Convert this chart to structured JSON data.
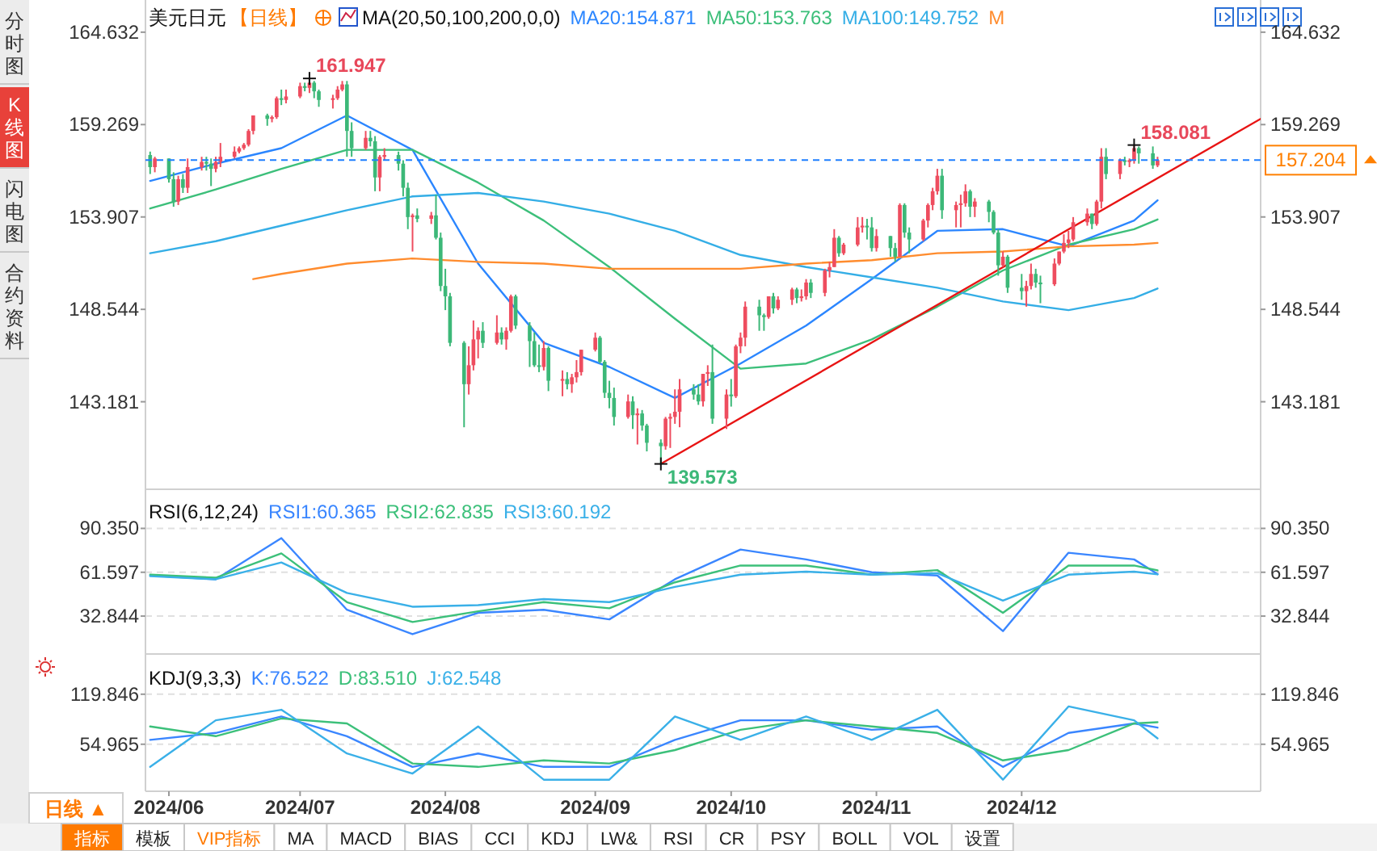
{
  "chart_data": [
    {
      "type": "candlestick",
      "title": "美元日元",
      "subtitle": "【日线】",
      "legend_title": "MA(20,50,100,200,0,0)",
      "legend": "top",
      "tick_labels": "y",
      "xlim": [
        "2024-05-29",
        "2025-01-22"
      ],
      "ylim": [
        138.1,
        166.5
      ],
      "yticks": [
        143.181,
        148.544,
        153.907,
        159.269,
        164.632
      ],
      "y2lim": [
        138.1,
        166.5
      ],
      "y2ticks": [
        143.181,
        148.544,
        153.907,
        159.269,
        164.632
      ],
      "x": [
        "2024-05-30",
        "2024-05-31",
        "2024-06-03",
        "2024-06-04",
        "2024-06-05",
        "2024-06-06",
        "2024-06-07",
        "2024-06-10",
        "2024-06-11",
        "2024-06-12",
        "2024-06-13",
        "2024-06-14",
        "2024-06-17",
        "2024-06-18",
        "2024-06-19",
        "2024-06-20",
        "2024-06-21",
        "2024-06-24",
        "2024-06-25",
        "2024-06-26",
        "2024-06-27",
        "2024-06-28",
        "2024-07-01",
        "2024-07-02",
        "2024-07-03",
        "2024-07-04",
        "2024-07-05",
        "2024-07-08",
        "2024-07-09",
        "2024-07-10",
        "2024-07-11",
        "2024-07-12",
        "2024-07-15",
        "2024-07-16",
        "2024-07-17",
        "2024-07-18",
        "2024-07-19",
        "2024-07-22",
        "2024-07-23",
        "2024-07-24",
        "2024-07-25",
        "2024-07-26",
        "2024-07-29",
        "2024-07-30",
        "2024-07-31",
        "2024-08-01",
        "2024-08-02",
        "2024-08-05",
        "2024-08-06",
        "2024-08-07",
        "2024-08-08",
        "2024-08-09",
        "2024-08-12",
        "2024-08-13",
        "2024-08-14",
        "2024-08-15",
        "2024-08-16",
        "2024-08-19",
        "2024-08-20",
        "2024-08-21",
        "2024-08-22",
        "2024-08-23",
        "2024-08-26",
        "2024-08-27",
        "2024-08-28",
        "2024-08-29",
        "2024-08-30",
        "2024-09-02",
        "2024-09-03",
        "2024-09-04",
        "2024-09-05",
        "2024-09-06",
        "2024-09-09",
        "2024-09-10",
        "2024-09-11",
        "2024-09-12",
        "2024-09-13",
        "2024-09-16",
        "2024-09-17",
        "2024-09-18",
        "2024-09-19",
        "2024-09-20",
        "2024-09-23",
        "2024-09-24",
        "2024-09-25",
        "2024-09-26",
        "2024-09-27",
        "2024-09-30",
        "2024-10-01",
        "2024-10-02",
        "2024-10-03",
        "2024-10-04",
        "2024-10-07",
        "2024-10-08",
        "2024-10-09",
        "2024-10-10",
        "2024-10-11",
        "2024-10-14",
        "2024-10-15",
        "2024-10-16",
        "2024-10-17",
        "2024-10-18",
        "2024-10-21",
        "2024-10-22",
        "2024-10-23",
        "2024-10-24",
        "2024-10-25",
        "2024-10-28",
        "2024-10-29",
        "2024-10-30",
        "2024-10-31",
        "2024-11-01",
        "2024-11-04",
        "2024-11-05",
        "2024-11-06",
        "2024-11-07",
        "2024-11-08",
        "2024-11-11",
        "2024-11-12",
        "2024-11-13",
        "2024-11-14",
        "2024-11-15",
        "2024-11-18",
        "2024-11-19",
        "2024-11-20",
        "2024-11-21",
        "2024-11-22",
        "2024-11-25",
        "2024-11-26",
        "2024-11-27",
        "2024-11-28",
        "2024-11-29",
        "2024-12-02",
        "2024-12-03",
        "2024-12-04",
        "2024-12-05",
        "2024-12-06",
        "2024-12-09",
        "2024-12-10",
        "2024-12-11",
        "2024-12-12",
        "2024-12-13",
        "2024-12-16",
        "2024-12-17",
        "2024-12-18",
        "2024-12-19",
        "2024-12-20",
        "2024-12-23",
        "2024-12-24",
        "2024-12-25",
        "2024-12-26",
        "2024-12-27",
        "2024-12-30",
        "2024-12-31"
      ],
      "ohlc": [
        [
          157.5,
          157.7,
          156.4,
          156.8
        ],
        [
          156.8,
          157.4,
          156.5,
          157.3
        ],
        [
          157.3,
          157.3,
          155.9,
          156.1
        ],
        [
          156.1,
          156.5,
          154.5,
          154.8
        ],
        [
          154.8,
          156.3,
          154.6,
          156.1
        ],
        [
          156.1,
          156.4,
          155.3,
          155.6
        ],
        [
          155.6,
          157.3,
          155.3,
          156.8
        ],
        [
          156.8,
          157.4,
          156.6,
          157.1
        ],
        [
          157.1,
          157.4,
          156.6,
          157.0
        ],
        [
          157.0,
          157.3,
          155.7,
          156.7
        ],
        [
          156.7,
          157.4,
          156.5,
          157.1
        ],
        [
          157.1,
          158.2,
          156.8,
          157.4
        ],
        [
          157.4,
          158.0,
          157.3,
          157.7
        ],
        [
          157.7,
          158.0,
          157.6,
          157.9
        ],
        [
          157.9,
          158.2,
          157.8,
          158.1
        ],
        [
          158.1,
          159.0,
          158.0,
          158.9
        ],
        [
          158.9,
          159.8,
          158.7,
          159.8
        ],
        [
          159.8,
          159.9,
          159.2,
          159.6
        ],
        [
          159.6,
          159.8,
          159.4,
          159.7
        ],
        [
          159.7,
          160.9,
          159.6,
          160.8
        ],
        [
          160.8,
          161.3,
          160.4,
          160.7
        ],
        [
          160.7,
          161.3,
          160.5,
          160.9
        ],
        [
          160.9,
          161.7,
          160.8,
          161.5
        ],
        [
          161.5,
          161.7,
          161.2,
          161.4
        ],
        [
          161.4,
          161.947,
          161.1,
          161.7
        ],
        [
          161.7,
          161.8,
          160.8,
          161.2
        ],
        [
          161.2,
          161.3,
          160.3,
          160.7
        ],
        [
          160.7,
          161.0,
          160.2,
          160.8
        ],
        [
          160.8,
          161.5,
          160.7,
          161.3
        ],
        [
          161.3,
          161.8,
          161.2,
          161.6
        ],
        [
          161.6,
          161.8,
          157.4,
          158.9
        ],
        [
          158.9,
          159.4,
          157.4,
          157.9
        ],
        [
          157.9,
          158.9,
          157.8,
          158.5
        ],
        [
          158.5,
          158.9,
          158.0,
          158.3
        ],
        [
          158.3,
          158.6,
          155.4,
          156.2
        ],
        [
          156.2,
          157.5,
          155.4,
          157.4
        ],
        [
          157.4,
          157.9,
          157.2,
          157.5
        ],
        [
          157.5,
          157.7,
          156.6,
          157.0
        ],
        [
          157.0,
          157.2,
          155.1,
          155.6
        ],
        [
          155.6,
          155.9,
          153.2,
          153.9
        ],
        [
          153.9,
          154.1,
          151.9,
          154.0
        ],
        [
          154.0,
          154.4,
          153.6,
          153.8
        ],
        [
          153.8,
          154.2,
          153.5,
          154.0
        ],
        [
          154.0,
          155.2,
          152.6,
          152.7
        ],
        [
          152.7,
          153.0,
          149.6,
          149.9
        ],
        [
          149.9,
          150.9,
          148.5,
          149.3
        ],
        [
          149.3,
          149.5,
          146.4,
          146.6
        ],
        [
          146.6,
          146.7,
          141.7,
          144.2
        ],
        [
          144.2,
          146.4,
          143.6,
          145.3
        ],
        [
          145.3,
          147.9,
          145.0,
          146.8
        ],
        [
          146.8,
          147.5,
          145.7,
          147.3
        ],
        [
          147.3,
          147.8,
          146.3,
          146.6
        ],
        [
          146.6,
          148.2,
          146.5,
          147.2
        ],
        [
          147.2,
          147.5,
          146.5,
          146.8
        ],
        [
          146.8,
          147.5,
          146.2,
          147.3
        ],
        [
          147.3,
          149.4,
          147.2,
          149.3
        ],
        [
          149.3,
          149.4,
          147.4,
          147.6
        ],
        [
          147.6,
          147.8,
          145.2,
          146.7
        ],
        [
          146.7,
          147.2,
          145.2,
          145.3
        ],
        [
          145.3,
          146.5,
          144.9,
          145.2
        ],
        [
          145.2,
          146.7,
          145.0,
          146.3
        ],
        [
          146.3,
          146.4,
          143.8,
          144.4
        ],
        [
          144.4,
          145.0,
          143.5,
          144.5
        ],
        [
          144.5,
          144.9,
          143.9,
          144.2
        ],
        [
          144.2,
          144.8,
          143.7,
          144.6
        ],
        [
          144.6,
          145.6,
          144.3,
          144.9
        ],
        [
          144.9,
          146.2,
          144.7,
          146.2
        ],
        [
          146.2,
          147.2,
          146.1,
          146.9
        ],
        [
          146.9,
          147.0,
          145.4,
          145.5
        ],
        [
          145.5,
          145.6,
          143.4,
          143.7
        ],
        [
          143.7,
          144.4,
          142.8,
          143.4
        ],
        [
          143.4,
          144.0,
          141.8,
          142.3
        ],
        [
          142.3,
          143.6,
          142.2,
          143.2
        ],
        [
          143.2,
          143.5,
          141.6,
          142.4
        ],
        [
          142.4,
          142.8,
          140.7,
          142.5
        ],
        [
          142.5,
          142.7,
          141.5,
          141.8
        ],
        [
          141.8,
          141.9,
          140.3,
          140.8
        ],
        [
          140.8,
          141.0,
          139.573,
          140.6
        ],
        [
          140.6,
          142.3,
          140.4,
          142.2
        ],
        [
          142.2,
          142.5,
          140.5,
          142.3
        ],
        [
          142.3,
          143.9,
          141.9,
          142.6
        ],
        [
          142.6,
          144.5,
          141.7,
          143.9
        ],
        [
          143.9,
          144.2,
          143.3,
          143.6
        ],
        [
          143.6,
          144.2,
          143.0,
          143.2
        ],
        [
          143.2,
          144.8,
          142.9,
          144.8
        ],
        [
          144.8,
          145.3,
          144.1,
          144.9
        ],
        [
          144.9,
          146.5,
          141.9,
          142.2
        ],
        [
          142.2,
          143.9,
          141.6,
          143.6
        ],
        [
          143.6,
          144.5,
          142.9,
          143.5
        ],
        [
          143.5,
          146.5,
          143.4,
          146.4
        ],
        [
          146.4,
          147.2,
          146.0,
          146.9
        ],
        [
          146.9,
          149.0,
          146.4,
          148.7
        ],
        [
          148.7,
          149.1,
          147.3,
          148.2
        ],
        [
          148.2,
          148.3,
          147.3,
          148.1
        ],
        [
          148.1,
          149.3,
          148.0,
          149.3
        ],
        [
          149.3,
          149.5,
          148.3,
          148.6
        ],
        [
          148.6,
          149.3,
          148.5,
          149.1
        ],
        [
          149.1,
          149.8,
          148.8,
          149.7
        ],
        [
          149.7,
          149.8,
          148.9,
          149.2
        ],
        [
          149.2,
          149.7,
          149.0,
          149.3
        ],
        [
          149.3,
          150.3,
          149.1,
          150.1
        ],
        [
          150.1,
          150.3,
          149.2,
          149.5
        ],
        [
          149.5,
          150.9,
          149.3,
          150.8
        ],
        [
          150.8,
          151.3,
          150.4,
          151.0
        ],
        [
          151.0,
          153.2,
          151.0,
          152.7
        ],
        [
          152.7,
          152.8,
          151.6,
          151.8
        ],
        [
          151.8,
          152.4,
          151.7,
          152.3
        ],
        [
          152.3,
          153.9,
          152.2,
          153.3
        ],
        [
          153.3,
          153.9,
          153.0,
          153.4
        ],
        [
          153.4,
          153.8,
          152.6,
          153.3
        ],
        [
          153.3,
          153.9,
          151.9,
          152.1
        ],
        [
          152.1,
          153.2,
          151.9,
          152.8
        ],
        [
          152.8,
          152.8,
          151.6,
          152.1
        ],
        [
          152.1,
          152.4,
          151.3,
          151.6
        ],
        [
          151.6,
          154.7,
          151.6,
          154.6
        ],
        [
          154.6,
          154.7,
          152.7,
          153.0
        ],
        [
          153.0,
          153.3,
          151.8,
          152.6
        ],
        [
          152.6,
          153.8,
          152.5,
          153.7
        ],
        [
          153.7,
          154.7,
          153.3,
          154.6
        ],
        [
          154.6,
          155.6,
          154.3,
          155.4
        ],
        [
          155.4,
          156.7,
          155.2,
          156.3
        ],
        [
          156.3,
          156.7,
          153.8,
          154.3
        ],
        [
          154.3,
          154.8,
          153.3,
          154.6
        ],
        [
          154.6,
          155.2,
          153.3,
          154.7
        ],
        [
          154.7,
          155.8,
          154.5,
          155.4
        ],
        [
          155.4,
          155.5,
          153.9,
          154.5
        ],
        [
          154.5,
          155.0,
          153.9,
          154.8
        ],
        [
          154.8,
          154.9,
          153.6,
          154.2
        ],
        [
          154.2,
          154.3,
          152.9,
          153.0
        ],
        [
          153.0,
          153.2,
          150.5,
          151.1
        ],
        [
          151.1,
          151.9,
          151.0,
          151.6
        ],
        [
          151.6,
          151.7,
          149.5,
          149.8
        ],
        [
          149.8,
          150.6,
          149.1,
          149.6
        ],
        [
          149.6,
          150.2,
          148.7,
          149.9
        ],
        [
          149.9,
          151.2,
          149.7,
          150.6
        ],
        [
          150.6,
          150.9,
          149.8,
          150.1
        ],
        [
          150.1,
          150.5,
          148.9,
          150.0
        ],
        [
          150.0,
          151.5,
          149.9,
          151.2
        ],
        [
          151.2,
          151.9,
          151.1,
          151.9
        ],
        [
          151.9,
          152.9,
          151.8,
          152.4
        ],
        [
          152.4,
          153.1,
          152.1,
          152.6
        ],
        [
          152.6,
          153.9,
          152.5,
          153.6
        ],
        [
          153.6,
          154.4,
          153.4,
          154.1
        ],
        [
          154.1,
          154.1,
          153.2,
          153.5
        ],
        [
          153.5,
          154.9,
          153.4,
          154.8
        ],
        [
          154.8,
          157.9,
          154.4,
          157.4
        ],
        [
          157.4,
          157.9,
          156.1,
          156.4
        ],
        [
          156.4,
          157.3,
          156.1,
          157.2
        ],
        [
          157.2,
          157.4,
          156.9,
          157.1
        ],
        [
          157.1,
          157.3,
          156.8,
          157.2
        ],
        [
          157.2,
          158.081,
          157.0,
          157.9
        ],
        [
          157.9,
          158.0,
          157.0,
          157.6
        ],
        [
          157.6,
          158.0,
          156.7,
          156.9
        ],
        [
          156.9,
          157.4,
          156.8,
          157.204
        ]
      ],
      "colors": [
        "#3cb878",
        "#ee4d5f",
        "#3cb878",
        "#3cb878",
        "#ee4d5f",
        "#3cb878",
        "#ee4d5f",
        "#ee4d5f",
        "#3cb878",
        "#3cb878",
        "#ee4d5f",
        "#ee4d5f",
        "#ee4d5f",
        "#ee4d5f",
        "#ee4d5f",
        "#ee4d5f",
        "#ee4d5f",
        "#3cb878",
        "#ee4d5f",
        "#ee4d5f",
        "#3cb878",
        "#ee4d5f",
        "#ee4d5f",
        "#3cb878",
        "#ee4d5f",
        "#3cb878",
        "#3cb878",
        "#ee4d5f",
        "#ee4d5f",
        "#ee4d5f",
        "#3cb878",
        "#3cb878",
        "#ee4d5f",
        "#3cb878",
        "#3cb878",
        "#ee4d5f",
        "#ee4d5f",
        "#3cb878",
        "#3cb878",
        "#3cb878",
        "#ee4d5f",
        "#3cb878",
        "#ee4d5f",
        "#3cb878",
        "#3cb878",
        "#3cb878",
        "#3cb878",
        "#3cb878",
        "#ee4d5f",
        "#ee4d5f",
        "#ee4d5f",
        "#3cb878",
        "#ee4d5f",
        "#3cb878",
        "#ee4d5f",
        "#ee4d5f",
        "#3cb878",
        "#3cb878",
        "#3cb878",
        "#3cb878",
        "#ee4d5f",
        "#3cb878",
        "#ee4d5f",
        "#3cb878",
        "#ee4d5f",
        "#ee4d5f",
        "#ee4d5f",
        "#ee4d5f",
        "#3cb878",
        "#3cb878",
        "#3cb878",
        "#3cb878",
        "#ee4d5f",
        "#3cb878",
        "#ee4d5f",
        "#3cb878",
        "#3cb878",
        "#3cb878",
        "#ee4d5f",
        "#ee4d5f",
        "#ee4d5f",
        "#ee4d5f",
        "#3cb878",
        "#3cb878",
        "#ee4d5f",
        "#ee4d5f",
        "#3cb878",
        "#ee4d5f",
        "#3cb878",
        "#ee4d5f",
        "#ee4d5f",
        "#ee4d5f",
        "#3cb878",
        "#3cb878",
        "#ee4d5f",
        "#3cb878",
        "#ee4d5f",
        "#ee4d5f",
        "#3cb878",
        "#ee4d5f",
        "#ee4d5f",
        "#3cb878",
        "#ee4d5f",
        "#ee4d5f",
        "#ee4d5f",
        "#3cb878",
        "#ee4d5f",
        "#ee4d5f",
        "#ee4d5f",
        "#3cb878",
        "#3cb878",
        "#ee4d5f",
        "#3cb878",
        "#3cb878",
        "#ee4d5f",
        "#3cb878",
        "#3cb878",
        "#ee4d5f",
        "#ee4d5f",
        "#ee4d5f",
        "#ee4d5f",
        "#3cb878",
        "#ee4d5f",
        "#ee4d5f",
        "#ee4d5f",
        "#3cb878",
        "#ee4d5f",
        "#3cb878",
        "#3cb878",
        "#3cb878",
        "#ee4d5f",
        "#3cb878",
        "#3cb878",
        "#ee4d5f",
        "#ee4d5f",
        "#3cb878",
        "#3cb878",
        "#ee4d5f",
        "#ee4d5f",
        "#ee4d5f",
        "#ee4d5f",
        "#ee4d5f",
        "#ee4d5f",
        "#3cb878",
        "#ee4d5f",
        "#ee4d5f",
        "#3cb878",
        "#ee4d5f",
        "#3cb878",
        "#ee4d5f",
        "#ee4d5f",
        "#3cb878",
        "#3cb878",
        "#ee4d5f"
      ],
      "series": [
        {
          "type": "line",
          "name": "MA20:154.871",
          "color": "#2b86ff",
          "x": [
            "2024-05-30",
            "2024-06-13",
            "2024-06-27",
            "2024-07-11",
            "2024-07-25",
            "2024-08-08",
            "2024-08-22",
            "2024-09-05",
            "2024-09-19",
            "2024-10-03",
            "2024-10-17",
            "2024-10-31",
            "2024-11-14",
            "2024-11-28",
            "2024-12-12",
            "2024-12-26",
            "2024-12-31"
          ],
          "values": [
            156.0,
            157.0,
            157.9,
            159.8,
            157.8,
            151.2,
            146.6,
            145.2,
            143.4,
            145.4,
            147.6,
            150.3,
            153.1,
            153.2,
            152.2,
            153.7,
            154.871
          ]
        },
        {
          "type": "line",
          "name": "MA50:153.763",
          "color": "#3cbf7a",
          "x": [
            "2024-05-30",
            "2024-06-13",
            "2024-06-27",
            "2024-07-11",
            "2024-07-25",
            "2024-08-08",
            "2024-08-22",
            "2024-09-05",
            "2024-09-19",
            "2024-10-03",
            "2024-10-17",
            "2024-10-31",
            "2024-11-14",
            "2024-11-28",
            "2024-12-12",
            "2024-12-26",
            "2024-12-31"
          ],
          "values": [
            154.4,
            155.5,
            156.7,
            157.8,
            157.8,
            155.9,
            153.7,
            151.0,
            148.0,
            145.1,
            145.4,
            146.8,
            148.7,
            150.8,
            152.3,
            153.2,
            153.763
          ]
        },
        {
          "type": "line",
          "name": "MA100:149.752",
          "color": "#34aee6",
          "x": [
            "2024-05-30",
            "2024-06-13",
            "2024-06-27",
            "2024-07-11",
            "2024-07-25",
            "2024-08-08",
            "2024-08-22",
            "2024-09-05",
            "2024-09-19",
            "2024-10-03",
            "2024-10-17",
            "2024-10-31",
            "2024-11-14",
            "2024-11-28",
            "2024-12-12",
            "2024-12-26",
            "2024-12-31"
          ],
          "values": [
            151.8,
            152.5,
            153.4,
            154.3,
            155.1,
            155.3,
            154.8,
            154.1,
            153.1,
            151.7,
            151.0,
            150.4,
            149.8,
            149.0,
            148.5,
            149.2,
            149.752
          ]
        },
        {
          "type": "line",
          "name": "M",
          "color": "#ff8c2e",
          "x": [
            "2024-06-21",
            "2024-06-27",
            "2024-07-11",
            "2024-07-25",
            "2024-08-08",
            "2024-08-22",
            "2024-09-05",
            "2024-09-19",
            "2024-10-03",
            "2024-10-17",
            "2024-10-31",
            "2024-11-14",
            "2024-11-28",
            "2024-12-12",
            "2024-12-26",
            "2024-12-31"
          ],
          "values": [
            150.3,
            150.6,
            151.2,
            151.5,
            151.3,
            151.2,
            150.9,
            150.9,
            150.9,
            151.2,
            151.4,
            151.8,
            151.9,
            152.2,
            152.3,
            152.4
          ]
        },
        {
          "type": "line",
          "color": "#e81414",
          "x": [
            "2024-09-16",
            "2025-01-22"
          ],
          "values": [
            139.573,
            159.6
          ]
        }
      ],
      "ref_lines": [
        {
          "axis": "y2",
          "value": 157.204,
          "label": "157.204",
          "color": "#1e7fff",
          "line_style": "dashed"
        }
      ],
      "annotations": [
        {
          "text": "161.947",
          "x": "2024-07-03",
          "y": 161.947
        },
        {
          "text": "139.573",
          "x": "2024-09-16",
          "y": 139.573
        },
        {
          "text": "158.081",
          "x": "2024-12-26",
          "y": 158.081
        }
      ]
    },
    {
      "type": "line",
      "title": "RSI(6,12,24)",
      "legend": "top left",
      "tick_labels": "y",
      "grid": "y",
      "xlim": [
        "2024-05-29",
        "2025-01-22"
      ],
      "ylim": [
        8,
        116
      ],
      "yticks": [
        32.844,
        61.597,
        {
          "value": 90.35,
          "label": "90.350"
        }
      ],
      "y2lim": [
        8,
        116
      ],
      "y2ticks": [
        32.844,
        61.597,
        {
          "value": 90.35,
          "label": "90.350"
        }
      ],
      "x": [
        "2024-05-30",
        "2024-06-13",
        "2024-06-27",
        "2024-07-11",
        "2024-07-25",
        "2024-08-08",
        "2024-08-22",
        "2024-09-05",
        "2024-09-19",
        "2024-10-03",
        "2024-10-17",
        "2024-10-31",
        "2024-11-14",
        "2024-11-28",
        "2024-12-12",
        "2024-12-26",
        "2024-12-31"
      ],
      "series": [
        {
          "name": "RSI1:60.365",
          "color": "#3a86ff",
          "values": [
            59.5,
            57,
            84,
            37,
            21,
            35,
            37,
            30.7,
            57,
            76.5,
            70,
            61.6,
            59.5,
            23,
            74.4,
            70,
            60.365
          ]
        },
        {
          "name": "RSI2:62.835",
          "color": "#3cc07a",
          "values": [
            60,
            58,
            74,
            42,
            29,
            36,
            42,
            38,
            55,
            66,
            66,
            60,
            63,
            35,
            66,
            66,
            62.835
          ]
        },
        {
          "name": "RSI3:60.192",
          "color": "#3ab0e8",
          "values": [
            59,
            57,
            68,
            48,
            39,
            40,
            44,
            42,
            52,
            60,
            62,
            60,
            61,
            43,
            60,
            62,
            60.192
          ]
        }
      ]
    },
    {
      "type": "line",
      "title": "KDJ(9,3,3)",
      "legend": "top left",
      "grid": "y",
      "xlim": [
        "2024-05-29",
        "2025-01-22"
      ],
      "xticks": [
        {
          "value": "2024-06-03",
          "label": "2024/06"
        },
        {
          "value": "2024-07-01",
          "label": "2024/07"
        },
        {
          "value": "2024-08-01",
          "label": "2024/08"
        },
        {
          "value": "2024-09-02",
          "label": "2024/09"
        },
        {
          "value": "2024-10-01",
          "label": "2024/10"
        },
        {
          "value": "2024-11-01",
          "label": "2024/11"
        },
        {
          "value": "2024-12-02",
          "label": "2024/12"
        }
      ],
      "ylim": [
        -6,
        172
      ],
      "yticks": [
        54.965,
        119.846
      ],
      "y2lim": [
        -6,
        172
      ],
      "y2ticks": [
        54.965,
        119.846
      ],
      "x": [
        "2024-05-30",
        "2024-06-13",
        "2024-06-27",
        "2024-07-11",
        "2024-07-25",
        "2024-08-08",
        "2024-08-22",
        "2024-09-05",
        "2024-09-19",
        "2024-10-03",
        "2024-10-17",
        "2024-10-31",
        "2024-11-14",
        "2024-11-28",
        "2024-12-12",
        "2024-12-26",
        "2024-12-31"
      ],
      "series": [
        {
          "name": "K:76.522",
          "color": "#3a86ff",
          "values": [
            60.6,
            69.6,
            91,
            65.4,
            25.6,
            43,
            25.6,
            25.6,
            60.6,
            86,
            86,
            73.7,
            78,
            25.6,
            69.6,
            82,
            76.522
          ]
        },
        {
          "name": "D:83.510",
          "color": "#3cc07a",
          "values": [
            78,
            65.4,
            88.4,
            82,
            30,
            25.6,
            34,
            30,
            47.4,
            73.7,
            86,
            78,
            69.6,
            34,
            47.4,
            82,
            83.51
          ]
        },
        {
          "name": "J:62.548",
          "color": "#3ab0e8",
          "values": [
            25.6,
            86,
            99.7,
            43,
            17,
            78,
            9,
            9,
            91,
            60.6,
            91,
            60.6,
            99.7,
            9,
            104,
            86,
            62.548
          ]
        }
      ]
    },
    {
      "type": "other",
      "annotations": [
        "分时图",
        "K线图",
        "闪电图",
        "合约资料",
        "日线 ▲",
        "指标",
        "模板",
        "VIP指标",
        "MA",
        "MACD",
        "BIAS",
        "CCI",
        "KDJ",
        "LW&",
        "RSI",
        "CR",
        "PSY",
        "BOLL",
        "VOL",
        "设置"
      ]
    }
  ]
}
